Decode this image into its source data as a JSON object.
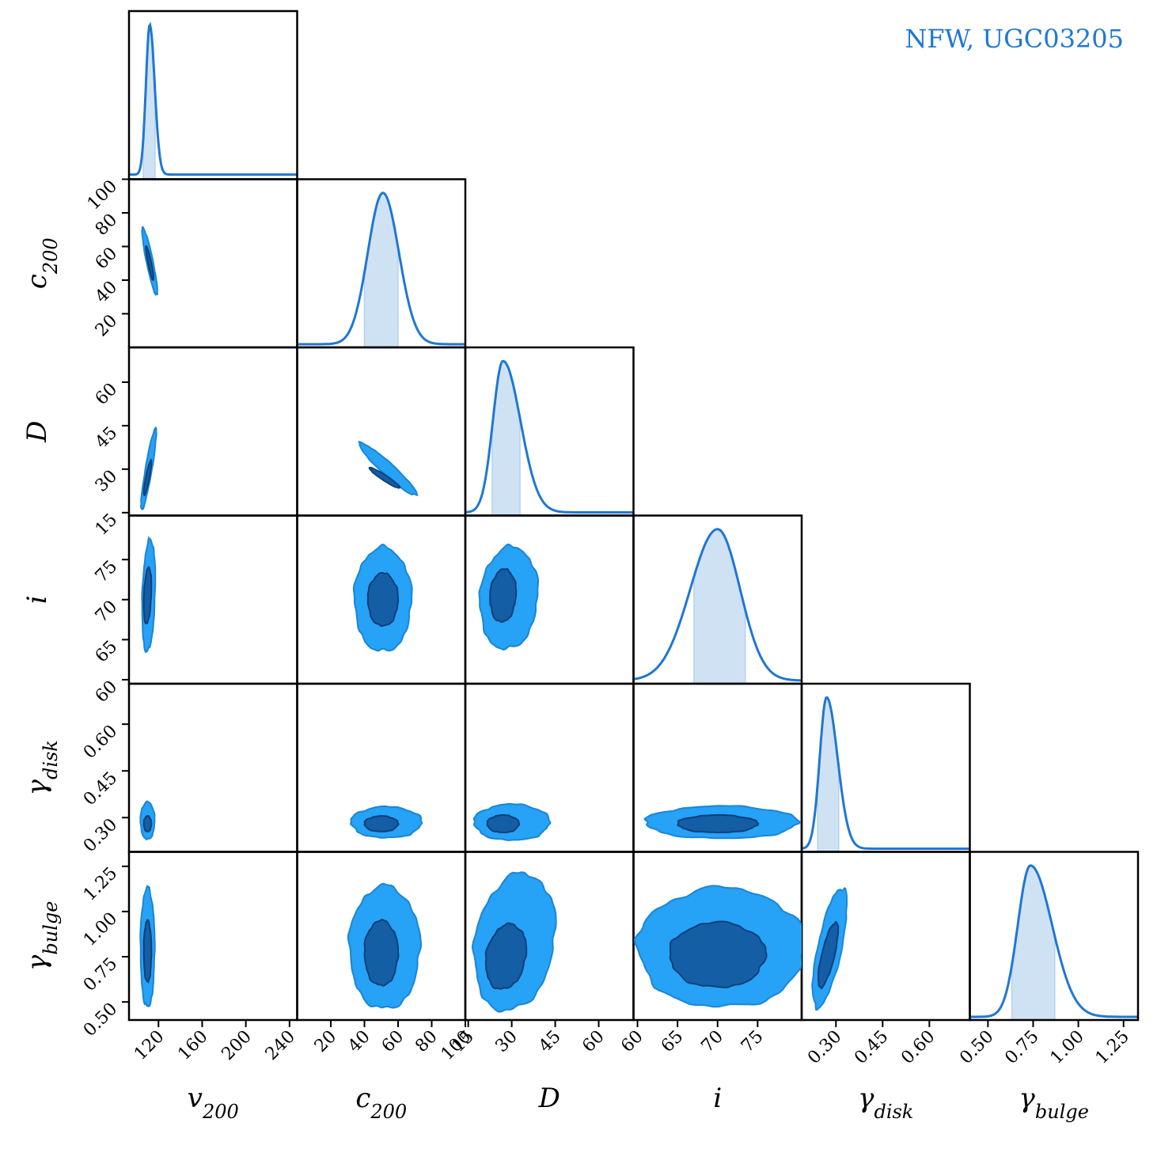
{
  "chart_data": {
    "type": "corner",
    "legend": {
      "text": "NFW, UGC03205",
      "color": "#1f77d4",
      "placement": "top-right"
    },
    "colors": {
      "line": "#1f77d4",
      "band": "#cfe2f4",
      "outer": "#26a2f7",
      "inner": "#145ea6"
    },
    "parameters": [
      {
        "key": "v200",
        "label_main": "v",
        "label_sub": "200",
        "range": [
          93,
          247
        ],
        "ticks": [
          120,
          160,
          200,
          240
        ],
        "posterior": {
          "mode": 112,
          "sigma_left": 3.5,
          "sigma_right": 4.5,
          "band": [
            106,
            117
          ],
          "tail": 0.01
        }
      },
      {
        "key": "c200",
        "label_main": "c",
        "label_sub": "200",
        "range": [
          0,
          100
        ],
        "ticks": [
          20,
          40,
          60,
          80,
          100
        ],
        "posterior": {
          "mode": 51,
          "sigma_left": 9,
          "sigma_right": 9.5,
          "band": [
            40,
            60
          ],
          "tail": 0.0
        }
      },
      {
        "key": "D",
        "label_main": "D",
        "label_sub": "",
        "range": [
          14,
          72
        ],
        "ticks": [
          15,
          30,
          45,
          60
        ],
        "posterior": {
          "mode": 27,
          "sigma_left": 3.5,
          "sigma_right": 6,
          "band": [
            23,
            33
          ],
          "tail": 0.0
        }
      },
      {
        "key": "i",
        "label_main": "i",
        "label_sub": "",
        "range": [
          59.5,
          80.5
        ],
        "ticks": [
          60,
          65,
          70,
          75
        ],
        "posterior": {
          "mode": 70,
          "sigma_left": 3.4,
          "sigma_right": 2.8,
          "band": [
            67,
            73.5
          ],
          "tail": 0.0
        }
      },
      {
        "key": "gamma_disk",
        "label_main": "γ",
        "label_sub": "disk",
        "range": [
          0.19,
          0.73
        ],
        "ticks": [
          0.3,
          0.45,
          0.6
        ],
        "posterior": {
          "mode": 0.27,
          "sigma_left": 0.022,
          "sigma_right": 0.035,
          "band": [
            0.24,
            0.31
          ],
          "tail": 0.0
        }
      },
      {
        "key": "gamma_bulge",
        "label_main": "γ",
        "label_sub": "bulge",
        "range": [
          0.4,
          1.33
        ],
        "ticks": [
          0.5,
          0.75,
          1.0,
          1.25
        ],
        "posterior": {
          "mode": 0.735,
          "sigma_left": 0.07,
          "sigma_right": 0.12,
          "band": [
            0.63,
            0.87
          ],
          "tail": 0.0
        }
      }
    ],
    "tick_labels": {
      "v200": [
        "120",
        "160",
        "200",
        "240"
      ],
      "c200": [
        "20",
        "40",
        "60",
        "80",
        "100"
      ],
      "D": [
        "15",
        "30",
        "45",
        "60"
      ],
      "i": [
        "60",
        "65",
        "70",
        "75"
      ],
      "gamma_disk": [
        "0.30",
        "0.45",
        "0.60"
      ],
      "gamma_bulge": [
        "0.50",
        "0.75",
        "1.00",
        "1.25"
      ]
    },
    "pairs": [
      {
        "row": 1,
        "col": 0,
        "inner": {
          "cx": 112,
          "cy": 50,
          "rx": 3.5,
          "ry": 10,
          "rho": -0.9
        },
        "outer": {
          "cx": 112,
          "cy": 51,
          "rx": 7,
          "ry": 20,
          "rho": -0.9
        }
      },
      {
        "row": 2,
        "col": 0,
        "inner": {
          "cx": 110,
          "cy": 27,
          "rx": 3.5,
          "ry": 6,
          "rho": 0.88
        },
        "outer": {
          "cx": 111,
          "cy": 30,
          "rx": 7,
          "ry": 14,
          "rho": 0.9
        }
      },
      {
        "row": 2,
        "col": 1,
        "inner": {
          "cx": 52,
          "cy": 27,
          "rx": 9,
          "ry": 3.5,
          "rho": -0.95
        },
        "outer": {
          "cx": 54,
          "cy": 30,
          "rx": 17,
          "ry": 9,
          "rho": -0.95
        }
      },
      {
        "row": 3,
        "col": 0,
        "inner": {
          "cx": 110,
          "cy": 70.5,
          "rx": 3.5,
          "ry": 3.5,
          "rho": 0.3
        },
        "outer": {
          "cx": 111,
          "cy": 70.5,
          "rx": 6,
          "ry": 7,
          "rho": 0.25
        }
      },
      {
        "row": 3,
        "col": 1,
        "inner": {
          "cx": 51,
          "cy": 70,
          "rx": 9,
          "ry": 3.3,
          "rho": 0
        },
        "outer": {
          "cx": 51,
          "cy": 70,
          "rx": 17,
          "ry": 6.5,
          "rho": 0
        }
      },
      {
        "row": 3,
        "col": 2,
        "inner": {
          "cx": 27,
          "cy": 70.5,
          "rx": 4.5,
          "ry": 3.3,
          "rho": 0.1
        },
        "outer": {
          "cx": 29,
          "cy": 70.2,
          "rx": 10,
          "ry": 6.4,
          "rho": 0.1
        }
      },
      {
        "row": 4,
        "col": 0,
        "inner": {
          "cx": 110,
          "cy": 0.28,
          "rx": 3.5,
          "ry": 0.025,
          "rho": 0
        },
        "outer": {
          "cx": 110,
          "cy": 0.29,
          "rx": 6.5,
          "ry": 0.06,
          "rho": 0
        }
      },
      {
        "row": 4,
        "col": 1,
        "inner": {
          "cx": 50,
          "cy": 0.28,
          "rx": 10,
          "ry": 0.025,
          "rho": 0
        },
        "outer": {
          "cx": 53,
          "cy": 0.285,
          "rx": 21,
          "ry": 0.05,
          "rho": 0
        }
      },
      {
        "row": 4,
        "col": 2,
        "inner": {
          "cx": 27,
          "cy": 0.28,
          "rx": 5.5,
          "ry": 0.028,
          "rho": 0
        },
        "outer": {
          "cx": 30,
          "cy": 0.285,
          "rx": 13,
          "ry": 0.058,
          "rho": 0
        }
      },
      {
        "row": 4,
        "col": 3,
        "inner": {
          "cx": 70,
          "cy": 0.28,
          "rx": 5,
          "ry": 0.028,
          "rho": 0
        },
        "outer": {
          "cx": 70.5,
          "cy": 0.285,
          "rx": 9.5,
          "ry": 0.052,
          "rho": 0
        }
      },
      {
        "row": 5,
        "col": 0,
        "inner": {
          "cx": 110,
          "cy": 0.78,
          "rx": 3.5,
          "ry": 0.17,
          "rho": 0
        },
        "outer": {
          "cx": 110,
          "cy": 0.8,
          "rx": 6.5,
          "ry": 0.33,
          "rho": 0
        }
      },
      {
        "row": 5,
        "col": 1,
        "inner": {
          "cx": 50,
          "cy": 0.77,
          "rx": 10,
          "ry": 0.18,
          "rho": 0
        },
        "outer": {
          "cx": 52,
          "cy": 0.8,
          "rx": 21,
          "ry": 0.34,
          "rho": 0
        }
      },
      {
        "row": 5,
        "col": 2,
        "inner": {
          "cx": 28,
          "cy": 0.75,
          "rx": 7,
          "ry": 0.18,
          "rho": 0.2
        },
        "outer": {
          "cx": 31,
          "cy": 0.83,
          "rx": 14,
          "ry": 0.38,
          "rho": 0.2
        }
      },
      {
        "row": 5,
        "col": 3,
        "inner": {
          "cx": 70,
          "cy": 0.76,
          "rx": 6,
          "ry": 0.18,
          "rho": 0
        },
        "outer": {
          "cx": 70.5,
          "cy": 0.8,
          "rx": 10.5,
          "ry": 0.33,
          "rho": 0
        }
      },
      {
        "row": 5,
        "col": 4,
        "inner": {
          "cx": 0.275,
          "cy": 0.76,
          "rx": 0.032,
          "ry": 0.18,
          "rho": 0.75
        },
        "outer": {
          "cx": 0.28,
          "cy": 0.8,
          "rx": 0.055,
          "ry": 0.33,
          "rho": 0.7
        }
      }
    ],
    "grid": false
  }
}
